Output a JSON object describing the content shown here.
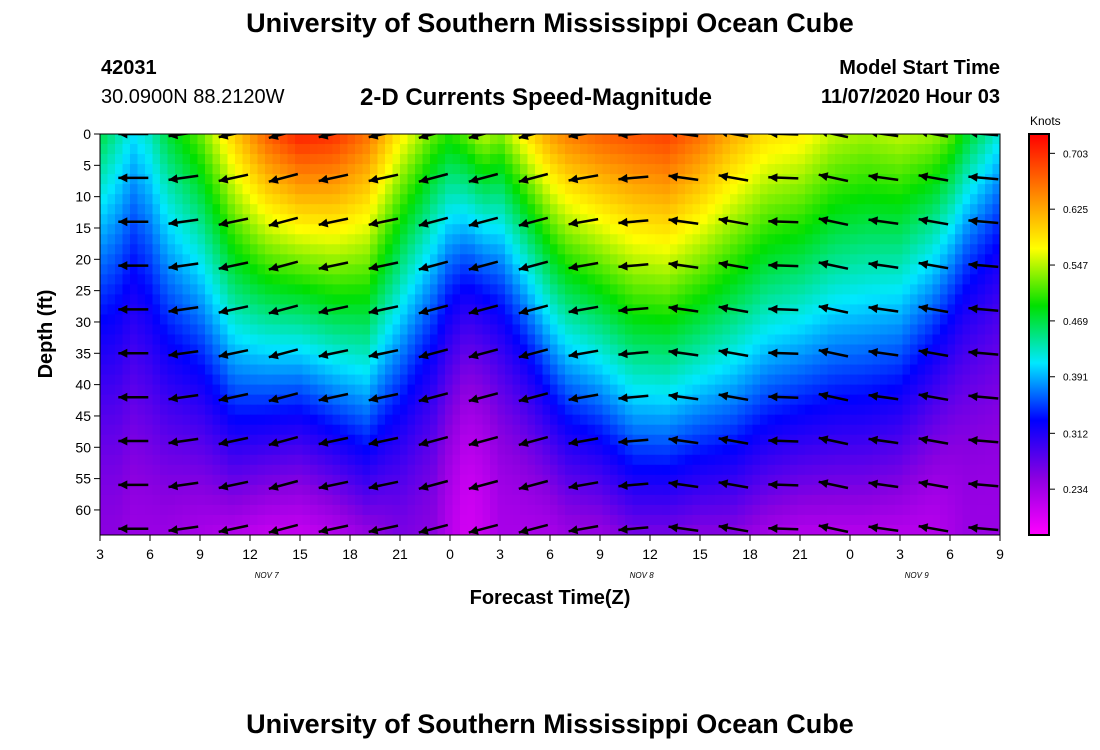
{
  "header": {
    "title": "University of Southern Mississippi Ocean Cube",
    "station_id": "42031",
    "coords": "30.0900N 88.2120W",
    "subtitle": "2-D Currents Speed-Magnitude",
    "model_start_label": "Model Start Time",
    "model_start_value": "11/07/2020 Hour 03"
  },
  "footer": {
    "title": "University of Southern Mississippi Ocean Cube"
  },
  "colors": {
    "scale": [
      "#ff00ff",
      "#8a00e0",
      "#0000ff",
      "#00e8ff",
      "#00e000",
      "#ffff00",
      "#ff8000",
      "#ff0000"
    ],
    "arrow": "#000000"
  },
  "chart_data": {
    "type": "heatmap",
    "xlabel": "Forecast Time(Z)",
    "ylabel": "Depth (ft)",
    "colorbar_label": "Knots",
    "colorbar_ticks": [
      "0.703",
      "0.625",
      "0.547",
      "0.469",
      "0.391",
      "0.312",
      "0.234"
    ],
    "colorbar_range": [
      0.17,
      0.73
    ],
    "x_tick_labels": [
      "3",
      "6",
      "9",
      "12",
      "15",
      "18",
      "21",
      "0",
      "3",
      "6",
      "9",
      "12",
      "15",
      "18",
      "21",
      "0",
      "3",
      "6",
      "9"
    ],
    "x_range_hours": [
      0,
      54
    ],
    "date_labels": [
      {
        "text": "NOV 7",
        "hour": 10
      },
      {
        "text": "NOV 8",
        "hour": 32.5
      },
      {
        "text": "NOV 9",
        "hour": 49
      }
    ],
    "y_tick_labels": [
      "0",
      "5",
      "10",
      "15",
      "20",
      "25",
      "30",
      "35",
      "40",
      "45",
      "50",
      "55",
      "60"
    ],
    "y_range_ft": [
      0,
      64
    ],
    "arrow_hours": [
      2,
      5,
      8,
      11,
      14,
      17,
      20,
      23,
      26,
      29,
      32,
      35,
      38,
      41,
      44,
      47,
      50,
      53
    ],
    "arrow_depths_ft": [
      0,
      7,
      14,
      21,
      28,
      35,
      42,
      49,
      56,
      63
    ],
    "arrow_angles_deg": [
      0,
      -8,
      -12,
      -15,
      -12,
      -12,
      -15,
      -15,
      -15,
      -10,
      -5,
      8,
      10,
      2,
      12,
      8,
      10,
      5
    ],
    "profile_hours": [
      0,
      1,
      2,
      3,
      4,
      6,
      8,
      10,
      12,
      14,
      16,
      18,
      20,
      21,
      22,
      23,
      24,
      26,
      27,
      28,
      30,
      32,
      34,
      36,
      38,
      40,
      42,
      44,
      46,
      48,
      50,
      51,
      52,
      53,
      54
    ],
    "profile_surface_knots": [
      0.47,
      0.44,
      0.41,
      0.43,
      0.47,
      0.52,
      0.6,
      0.67,
      0.71,
      0.7,
      0.66,
      0.58,
      0.52,
      0.5,
      0.52,
      0.55,
      0.53,
      0.6,
      0.63,
      0.65,
      0.67,
      0.68,
      0.69,
      0.66,
      0.62,
      0.59,
      0.58,
      0.55,
      0.54,
      0.55,
      0.54,
      0.52,
      0.48,
      0.45,
      0.42
    ],
    "profile_bottom_knots": [
      0.25,
      0.25,
      0.24,
      0.24,
      0.24,
      0.23,
      0.22,
      0.21,
      0.21,
      0.22,
      0.24,
      0.26,
      0.25,
      0.22,
      0.2,
      0.21,
      0.23,
      0.23,
      0.23,
      0.24,
      0.24,
      0.26,
      0.26,
      0.25,
      0.25,
      0.23,
      0.22,
      0.22,
      0.22,
      0.22,
      0.22,
      0.23,
      0.24,
      0.24,
      0.24
    ],
    "profile_shape": [
      1.6,
      1.5,
      1.5,
      1.4,
      1.3,
      1.2,
      1.0,
      1.1,
      1.2,
      1.1,
      1.0,
      1.3,
      1.6,
      1.7,
      1.9,
      2.0,
      1.9,
      1.5,
      1.3,
      1.2,
      1.1,
      1.0,
      1.0,
      1.0,
      1.0,
      1.0,
      1.0,
      1.0,
      1.0,
      1.1,
      1.4,
      1.7,
      2.0,
      2.1,
      2.2
    ]
  }
}
